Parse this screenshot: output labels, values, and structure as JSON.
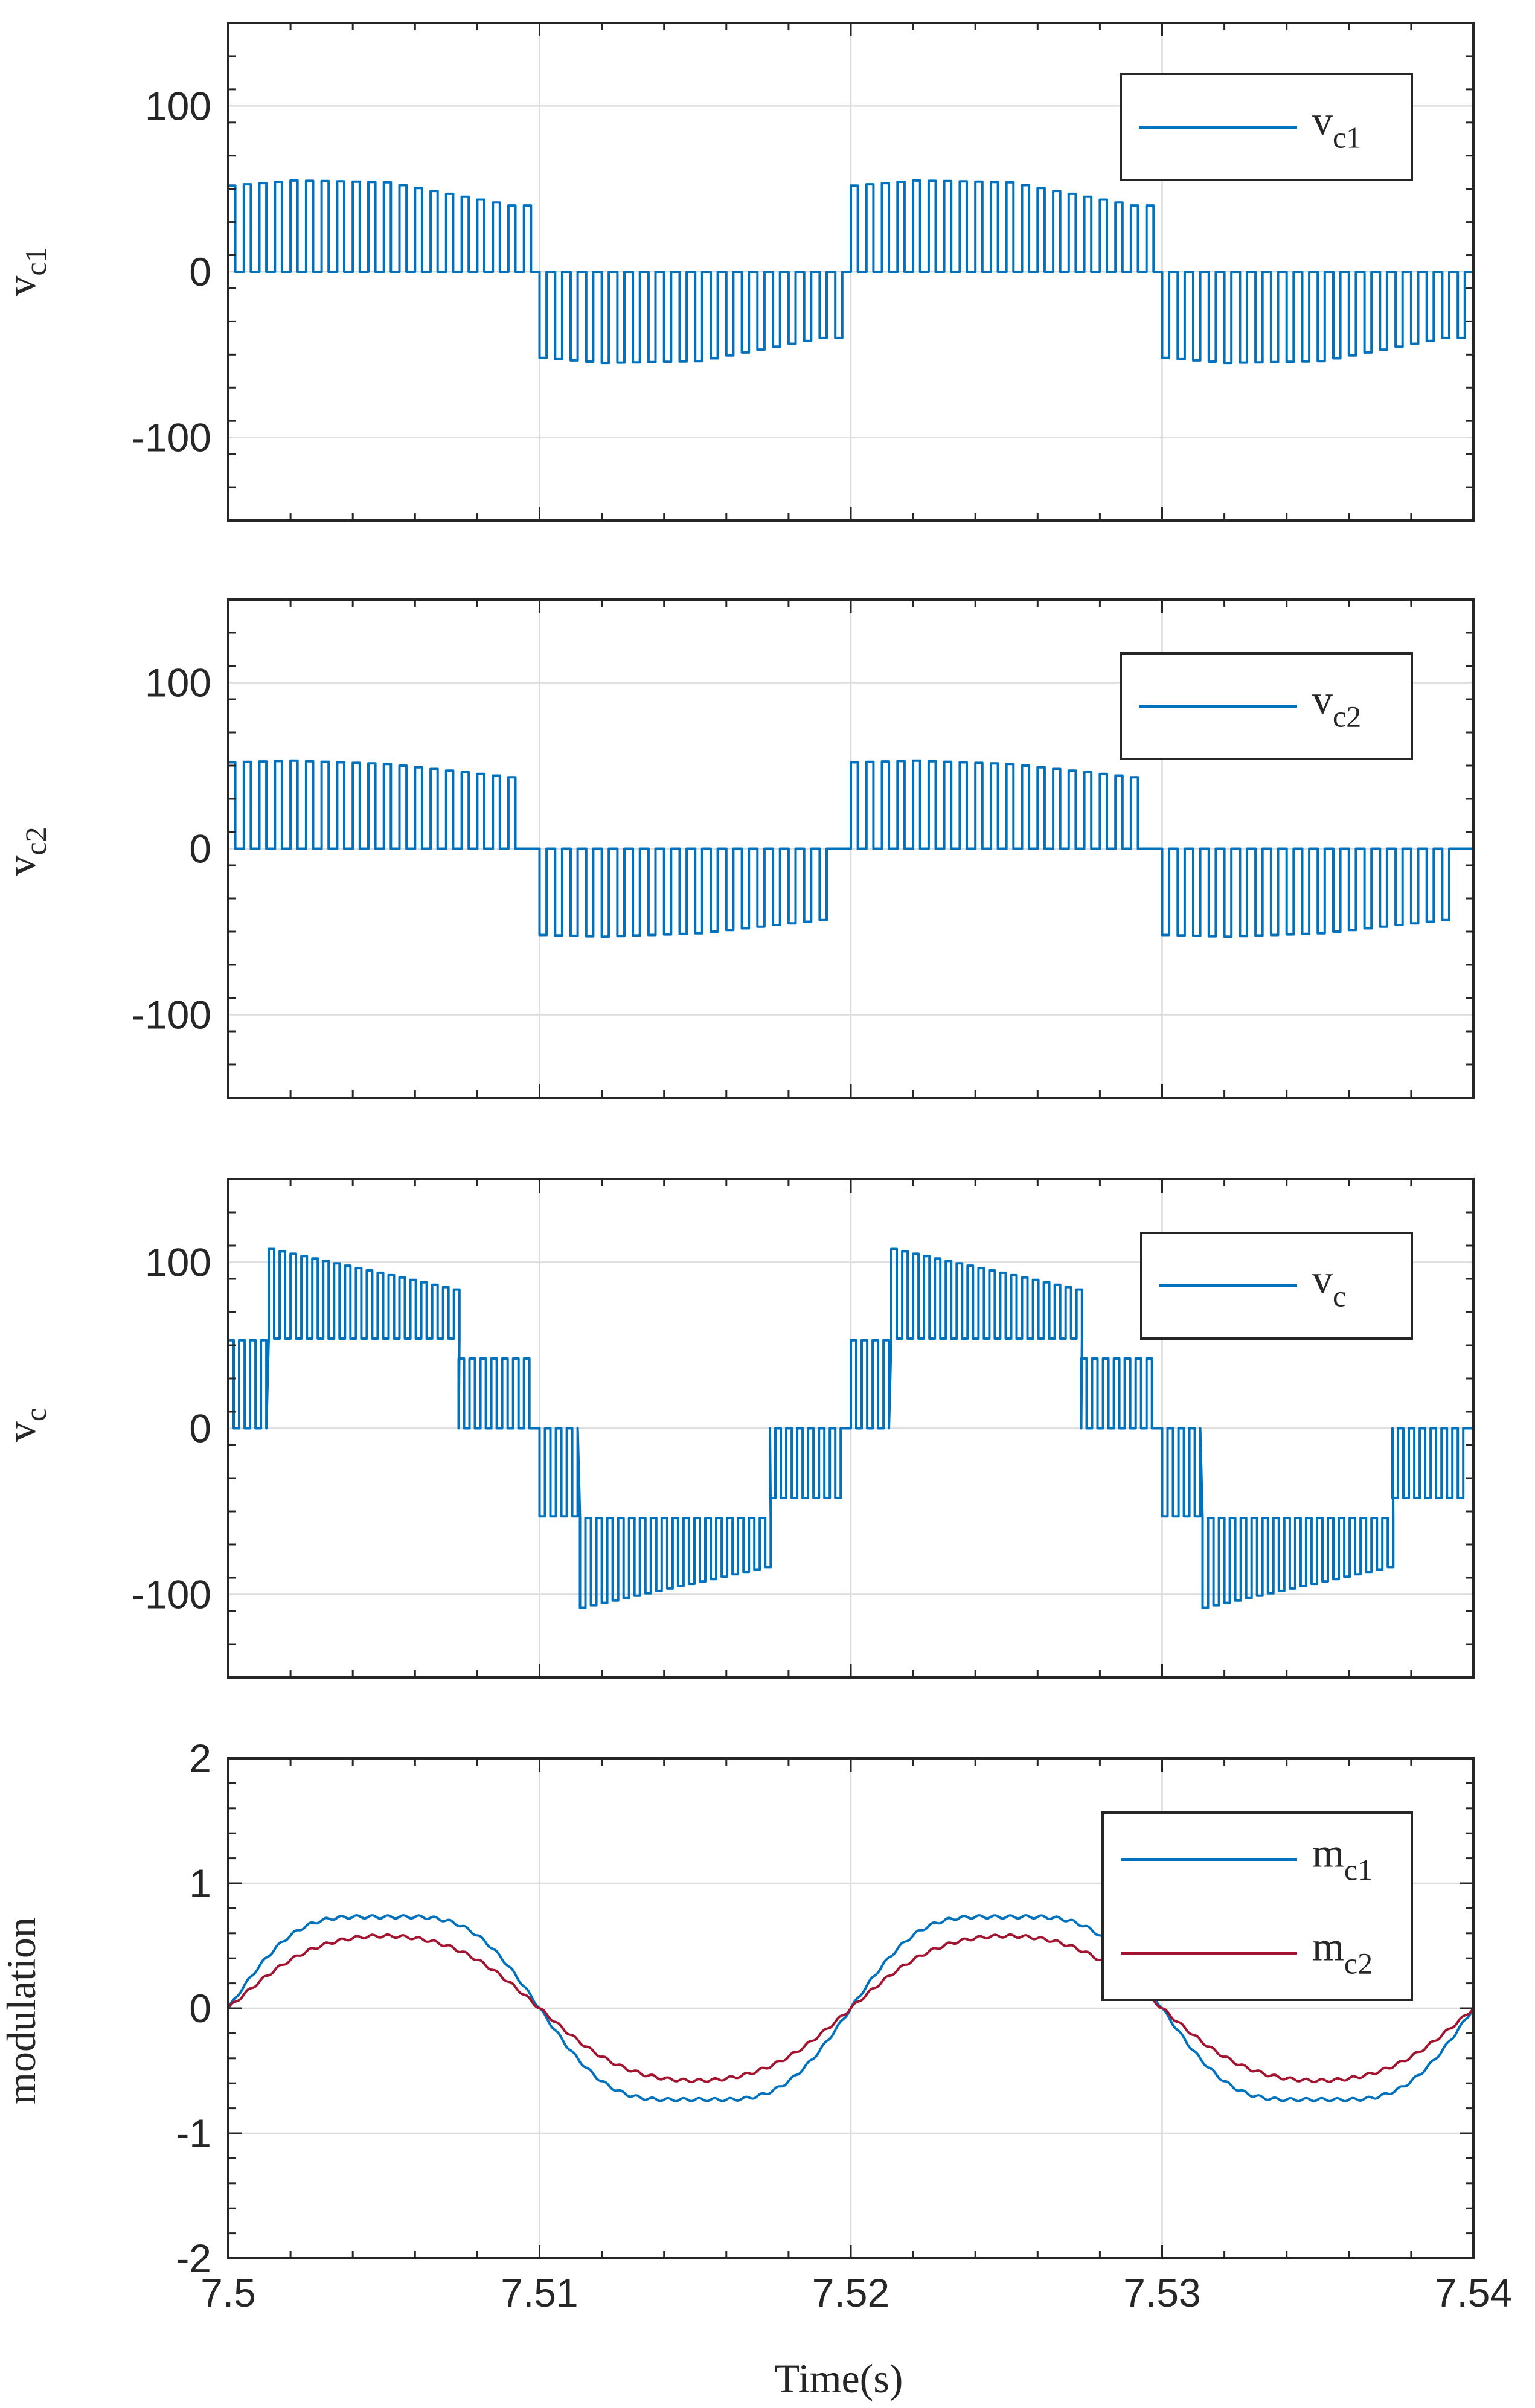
{
  "figure": {
    "xlabel": "Time(s)",
    "colors": {
      "blue": "#0072BD",
      "red": "#A2142F",
      "grid": "#dcdcdc",
      "axis": "#262626"
    }
  },
  "chart_data": [
    {
      "type": "line",
      "id": "vc1",
      "ylabel": "v",
      "ylabel_sub": "c1",
      "xlim": [
        7.5,
        7.54
      ],
      "ylim": [
        -150,
        150
      ],
      "xticks": [
        7.5,
        7.51,
        7.52,
        7.53,
        7.54
      ],
      "yticks": [
        -100,
        0,
        100
      ],
      "ytick_labels": [
        "-100",
        "0",
        "100"
      ],
      "show_xtick_labels": false,
      "grid": true,
      "legend": [
        {
          "label": "v",
          "sub": "c1",
          "color": "#0072BD"
        }
      ],
      "series": [
        {
          "name": "v_c1",
          "kind": "pwm_unipolar",
          "color": "#0072BD",
          "fundamental_period": 0.02,
          "switching_period": 0.0005,
          "envelope": [
            [
              0.0,
              52
            ],
            [
              0.002,
              55
            ],
            [
              0.005,
              54
            ],
            [
              0.009,
              40
            ],
            [
              0.0098,
              40
            ]
          ],
          "shift": 0.0,
          "switch_dead_from": 0.0098,
          "polarity_start": 1
        }
      ]
    },
    {
      "type": "line",
      "id": "vc2",
      "ylabel": "v",
      "ylabel_sub": "c2",
      "xlim": [
        7.5,
        7.54
      ],
      "ylim": [
        -150,
        150
      ],
      "xticks": [
        7.5,
        7.51,
        7.52,
        7.53,
        7.54
      ],
      "yticks": [
        -100,
        0,
        100
      ],
      "ytick_labels": [
        "-100",
        "0",
        "100"
      ],
      "show_xtick_labels": false,
      "grid": true,
      "legend": [
        {
          "label": "v",
          "sub": "c2",
          "color": "#0072BD"
        }
      ],
      "series": [
        {
          "name": "v_c2",
          "kind": "pwm_unipolar",
          "color": "#0072BD",
          "fundamental_period": 0.02,
          "switching_period": 0.0005,
          "envelope": [
            [
              0.0,
              52
            ],
            [
              0.002,
              53
            ],
            [
              0.005,
              51
            ],
            [
              0.009,
              43
            ],
            [
              0.0094,
              43
            ]
          ],
          "shift": 0.0,
          "switch_dead_from": 0.0094,
          "polarity_start": 1
        }
      ]
    },
    {
      "type": "line",
      "id": "vc",
      "ylabel": "v",
      "ylabel_sub": "c",
      "xlim": [
        7.5,
        7.54
      ],
      "ylim": [
        -150,
        150
      ],
      "xticks": [
        7.5,
        7.51,
        7.52,
        7.53,
        7.54
      ],
      "yticks": [
        -100,
        0,
        100
      ],
      "ytick_labels": [
        "-100",
        "0",
        "100"
      ],
      "show_xtick_labels": false,
      "grid": true,
      "legend": [
        {
          "label": "v",
          "sub": "c",
          "color": "#0072BD"
        }
      ],
      "series": [
        {
          "name": "v_c",
          "kind": "pwm_multilevel",
          "color": "#0072BD",
          "fundamental_period": 0.02,
          "switching_period": 0.00035,
          "levels": [
            {
              "from": 0.0,
              "to": 0.0013,
              "low": 0,
              "high": 53
            },
            {
              "from": 0.0013,
              "to": 0.0074,
              "low": 54,
              "high": 108,
              "high_end": 83
            },
            {
              "from": 0.0074,
              "to": 0.0096,
              "low": 0,
              "high": 42
            }
          ]
        }
      ]
    },
    {
      "type": "line",
      "id": "modulation",
      "ylabel": "modulation",
      "ylabel_sub": "",
      "xlabel": "Time(s)",
      "xlim": [
        7.5,
        7.54
      ],
      "ylim": [
        -2,
        2
      ],
      "xticks": [
        7.5,
        7.51,
        7.52,
        7.53,
        7.54
      ],
      "xtick_labels": [
        "7.5",
        "7.51",
        "7.52",
        "7.53",
        "7.54"
      ],
      "yticks": [
        -2,
        -1,
        0,
        1,
        2
      ],
      "ytick_labels": [
        "-2",
        "-1",
        "0",
        "1",
        "2"
      ],
      "show_xtick_labels": true,
      "grid": true,
      "legend": [
        {
          "label": "m",
          "sub": "c1",
          "color": "#0072BD"
        },
        {
          "label": "m",
          "sub": "c2",
          "color": "#A2142F"
        }
      ],
      "series": [
        {
          "name": "m_c1",
          "kind": "sine",
          "color": "#0072BD",
          "amplitude": 0.9,
          "third_harmonic": 0.12,
          "period": 0.02,
          "zero_cross": 7.5
        },
        {
          "name": "m_c2",
          "kind": "sine",
          "color": "#A2142F",
          "amplitude": 0.63,
          "third_harmonic": 0.05,
          "period": 0.02,
          "zero_cross": 7.5
        }
      ]
    }
  ]
}
